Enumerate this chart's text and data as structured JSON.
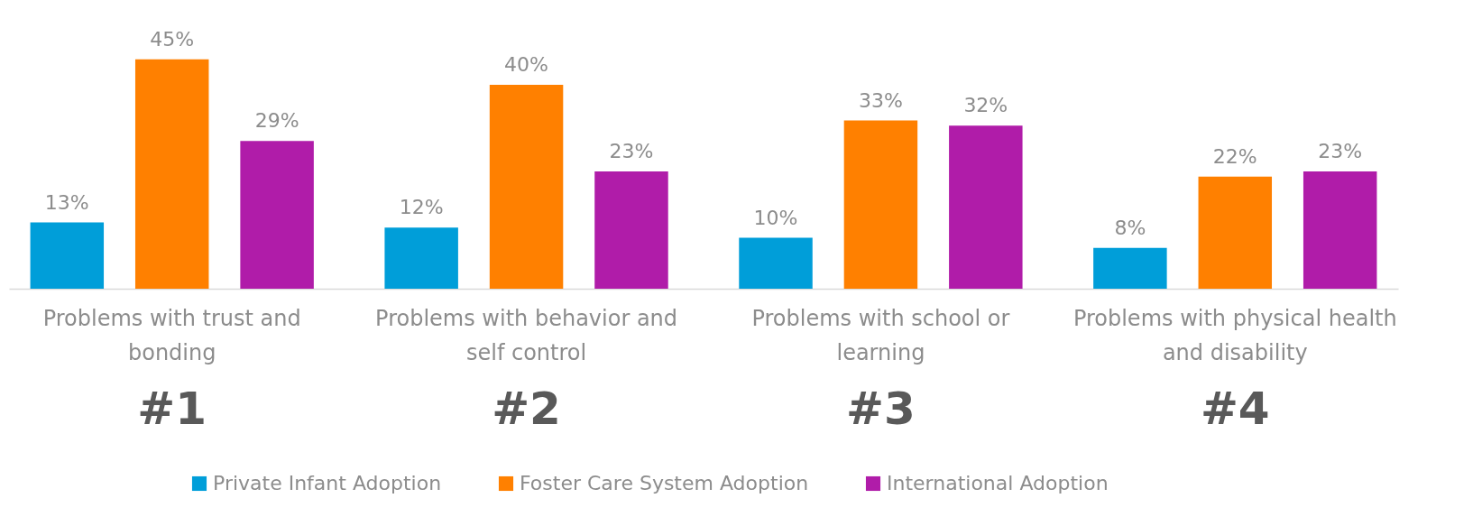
{
  "chart_data": {
    "type": "bar",
    "categories": [
      "Problems with trust and bonding",
      "Problems with behavior and self control",
      "Problems with school or learning",
      "Problems with physical health and disability"
    ],
    "series": [
      {
        "name": "Private Infant Adoption",
        "color": "#009ed9",
        "values": [
          13,
          12,
          10,
          8
        ],
        "value_labels": [
          "13%",
          "12%",
          "10%",
          "8%"
        ]
      },
      {
        "name": "Foster Care System Adoption",
        "color": "#ff8000",
        "values": [
          45,
          40,
          33,
          22
        ],
        "value_labels": [
          "45%",
          "40%",
          "33%",
          "22%"
        ]
      },
      {
        "name": "International Adoption",
        "color": "#b01ca9",
        "values": [
          29,
          23,
          32,
          23
        ],
        "value_labels": [
          "29%",
          "23%",
          "32%",
          "23%"
        ]
      }
    ],
    "annotations": [
      "#1",
      "#2",
      "#3",
      "#4"
    ],
    "legend": "bottom"
  }
}
